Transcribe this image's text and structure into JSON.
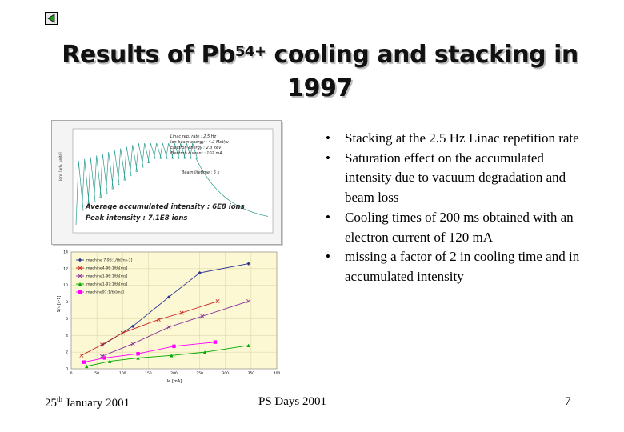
{
  "nav": {
    "icon": "back-triangle-icon"
  },
  "title": {
    "prefix": "Results of Pb",
    "superscript": "54+",
    "suffix": " cooling and stacking in",
    "line2": "1997"
  },
  "bullets": [
    "Stacking at the 2.5 Hz Linac repetition rate",
    "Saturation effect on the accumulated intensity due to vacuum degradation and beam loss",
    "Cooling times of 200 ms obtained with an electron current of 120 mA",
    "missing a factor of 2 in cooling time and in accumulated intensity"
  ],
  "footer": {
    "date_day": "25",
    "date_suffix": "th",
    "date_rest": " January 2001",
    "center": "PS Days 2001",
    "page": "7"
  },
  "top_figure": {
    "info_lines": [
      "Linac rep. rate : 2.5 Hz",
      "Ion beam energy : 4.2 MeV/u",
      "Electron energy : 2.3 keV",
      "Electron current : 102 mA"
    ],
    "lifetime_label": "Beam lifetime : 5 s",
    "average_label": "Average accumulated intensity : 6E8 ions",
    "peak_label": "Peak intensity : 7.1E8 ions",
    "y_axis_label": "Ions [arb. units]"
  },
  "chart_data": {
    "type": "line",
    "xlabel": "Ie [mA]",
    "ylabel": "1/τ [s-1]",
    "xlim": [
      0,
      400
    ],
    "ylim": [
      0,
      14
    ],
    "x_ticks": [
      0,
      50,
      100,
      150,
      200,
      250,
      300,
      350,
      400
    ],
    "y_ticks": [
      0,
      2,
      4,
      6,
      8,
      10,
      12,
      14
    ],
    "grid": true,
    "legend_position": "top-left",
    "series": [
      {
        "name": "machine 7-96:1/th[ms-1]",
        "color": "#2e3192",
        "marker": "diamond",
        "points": [
          [
            60,
            2.8
          ],
          [
            120,
            5.1
          ],
          [
            190,
            8.6
          ],
          [
            250,
            11.5
          ],
          [
            345,
            12.6
          ]
        ]
      },
      {
        "name": "machine4-96:1/th[ms]",
        "color": "#cc2222",
        "marker": "x",
        "points": [
          [
            20,
            1.6
          ],
          [
            60,
            2.9
          ],
          [
            100,
            4.3
          ],
          [
            170,
            5.9
          ],
          [
            215,
            6.7
          ],
          [
            285,
            8.1
          ]
        ]
      },
      {
        "name": "machine1-96:1/th[ms]",
        "color": "#8a2a9a",
        "marker": "x",
        "points": [
          [
            60,
            1.5
          ],
          [
            120,
            3.0
          ],
          [
            190,
            5.0
          ],
          [
            255,
            6.3
          ],
          [
            345,
            8.1
          ]
        ]
      },
      {
        "name": "machine1-97:1/th[ms]",
        "color": "#00aa00",
        "marker": "triangle",
        "points": [
          [
            30,
            0.3
          ],
          [
            75,
            0.9
          ],
          [
            130,
            1.3
          ],
          [
            195,
            1.6
          ],
          [
            260,
            2.0
          ],
          [
            345,
            2.8
          ]
        ]
      },
      {
        "name": "machine97:1/th[ms]",
        "color": "#ff00ff",
        "marker": "square",
        "points": [
          [
            25,
            0.8
          ],
          [
            65,
            1.3
          ],
          [
            130,
            1.8
          ],
          [
            200,
            2.7
          ],
          [
            280,
            3.2
          ]
        ]
      }
    ]
  }
}
